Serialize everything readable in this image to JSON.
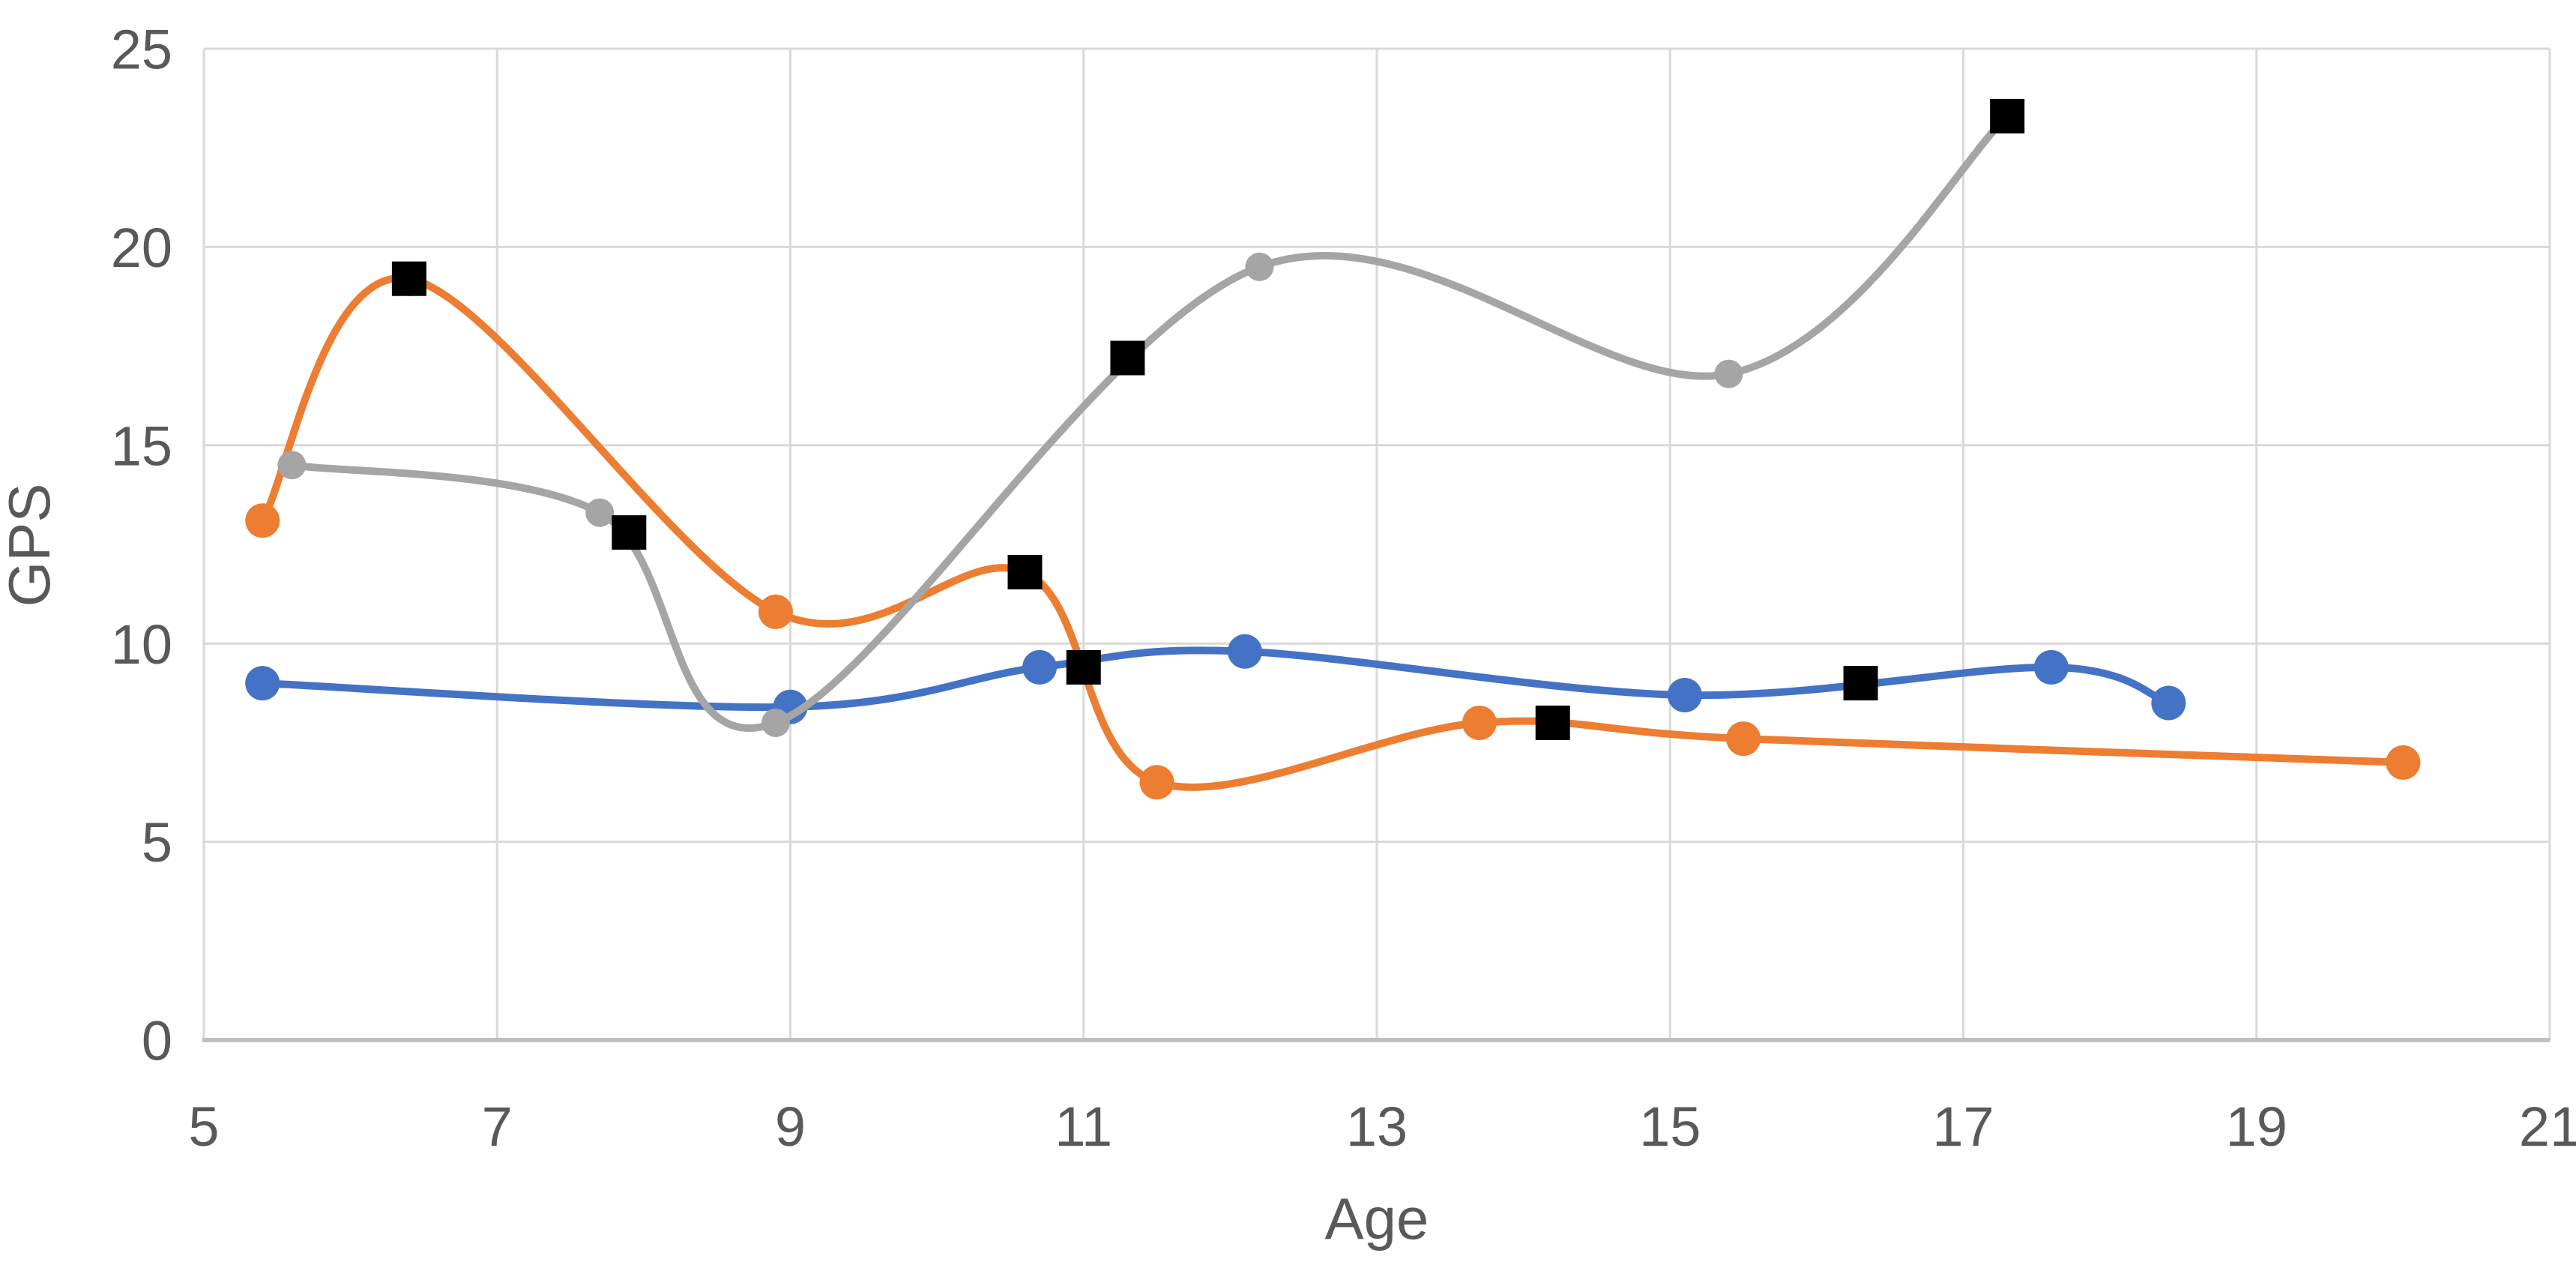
{
  "chart_data": {
    "type": "scatter",
    "subtype": "smooth-lines-with-markers",
    "title": "",
    "xlabel": "Age",
    "ylabel": "GPS",
    "xlim": [
      5,
      21
    ],
    "ylim": [
      0,
      25
    ],
    "x_ticks": [
      5,
      7,
      9,
      11,
      13,
      15,
      17,
      19,
      21
    ],
    "y_ticks": [
      0,
      5,
      10,
      15,
      20,
      25
    ],
    "grid": true,
    "legend_position": "none",
    "series": [
      {
        "name": "blue-series",
        "color": "#4472C4",
        "marker": "circle",
        "marker_radius": 23,
        "line": true,
        "points": [
          [
            5.4,
            9.0
          ],
          [
            9.0,
            8.4
          ],
          [
            10.7,
            9.4
          ],
          [
            12.1,
            9.8
          ],
          [
            15.1,
            8.7
          ],
          [
            17.6,
            9.4
          ],
          [
            18.4,
            8.5
          ]
        ]
      },
      {
        "name": "orange-series",
        "color": "#ED7D31",
        "marker": "circle",
        "marker_radius": 23,
        "line": true,
        "points": [
          [
            5.4,
            13.1
          ],
          [
            6.4,
            19.2
          ],
          [
            8.9,
            10.8
          ],
          [
            10.6,
            11.8
          ],
          [
            11.5,
            6.5
          ],
          [
            13.7,
            8.0
          ],
          [
            15.5,
            7.6
          ],
          [
            20.0,
            7.0
          ]
        ]
      },
      {
        "name": "gray-series",
        "color": "#A5A5A5",
        "marker": "circle",
        "marker_radius": 19,
        "line": true,
        "points": [
          [
            5.6,
            14.5
          ],
          [
            7.7,
            13.3
          ],
          [
            8.9,
            8.0
          ],
          [
            12.2,
            19.5
          ],
          [
            15.4,
            16.8
          ],
          [
            17.3,
            23.3
          ]
        ]
      },
      {
        "name": "black-square-series",
        "color": "#000000",
        "marker": "square",
        "marker_size": 46,
        "line": false,
        "points": [
          [
            6.4,
            19.2
          ],
          [
            7.9,
            12.8
          ],
          [
            10.6,
            11.8
          ],
          [
            11.0,
            9.4
          ],
          [
            11.3,
            17.2
          ],
          [
            14.2,
            8.0
          ],
          [
            16.3,
            9.0
          ],
          [
            17.3,
            23.3
          ]
        ]
      }
    ],
    "colors": {
      "background": "#ffffff",
      "gridline": "#D9D9D9",
      "axis_line": "#BFBFBF",
      "tick_label": "#595959",
      "axis_title": "#595959"
    }
  }
}
